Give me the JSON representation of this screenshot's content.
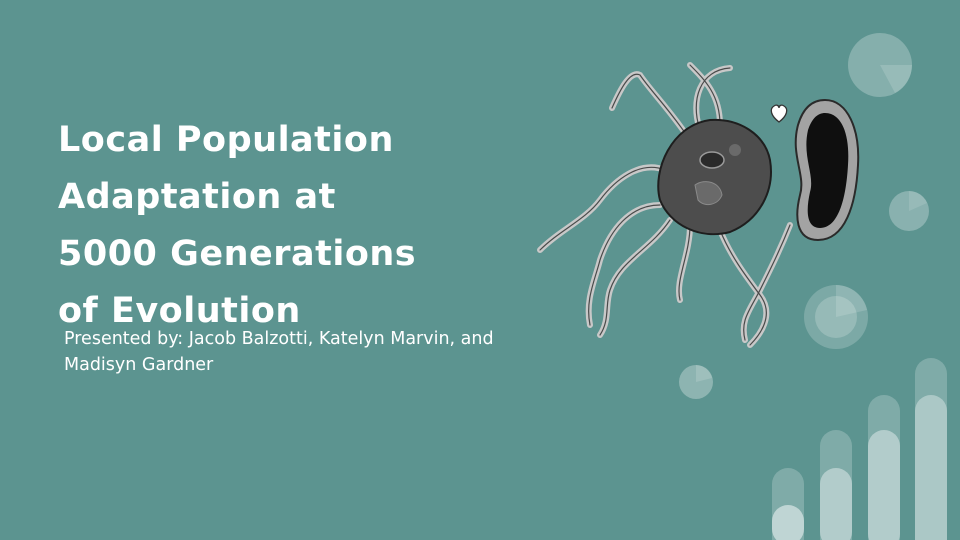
{
  "slide": {
    "title_lines": [
      "Local Population",
      "Adaptation at",
      "5000 Generations",
      "of Evolution"
    ],
    "subtitle_lines": [
      "Presented by: Jacob Balzotti, Katelyn Marvin, and",
      "Madisyn Gardner"
    ]
  },
  "colors": {
    "background": "#5c9490",
    "text": "#ffffff",
    "decoration": "#ffffff"
  },
  "icons": [
    "bacterium-illustration",
    "heart-icon",
    "pie-chart-icon",
    "bar-chart-icon"
  ]
}
